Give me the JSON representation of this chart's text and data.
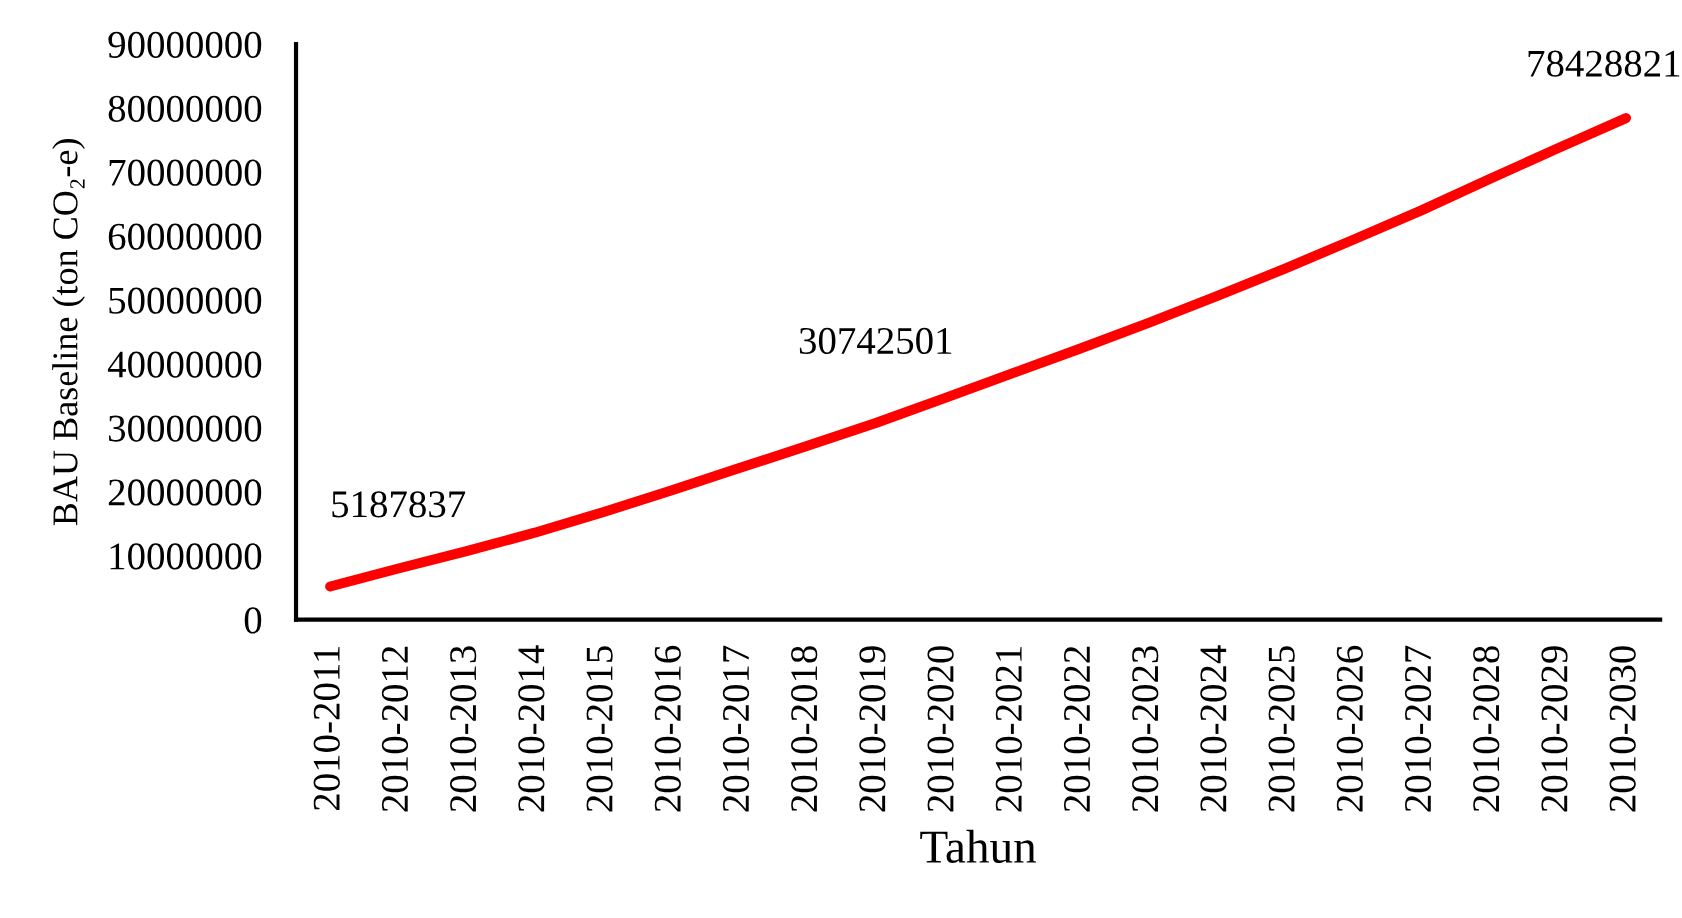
{
  "chart_data": {
    "type": "line",
    "xlabel": "Tahun",
    "ylabel": "BAU Baseline (ton CO₂-e)",
    "categories": [
      "2010-2011",
      "2010-2012",
      "2010-2013",
      "2010-2014",
      "2010-2015",
      "2010-2016",
      "2010-2017",
      "2010-2018",
      "2010-2019",
      "2010-2020",
      "2010-2021",
      "2010-2022",
      "2010-2023",
      "2010-2024",
      "2010-2025",
      "2010-2026",
      "2010-2027",
      "2010-2028",
      "2010-2029",
      "2010-2030"
    ],
    "series": [
      {
        "color": "#ff0000",
        "values": [
          5187837,
          8000000,
          10700000,
          13600000,
          16800000,
          20200000,
          23700000,
          27200000,
          30742501,
          34600000,
          38500000,
          42400000,
          46400000,
          50600000,
          54900000,
          59400000,
          64000000,
          68900000,
          73700000,
          78428821
        ],
        "value_labels": [
          "5187837",
          null,
          null,
          null,
          null,
          null,
          null,
          null,
          "30742501",
          null,
          null,
          null,
          null,
          null,
          null,
          null,
          null,
          null,
          null,
          "78428821"
        ]
      }
    ],
    "ylim": [
      0,
      90000000
    ],
    "yticks": [
      0,
      10000000,
      20000000,
      30000000,
      40000000,
      50000000,
      60000000,
      70000000,
      80000000,
      90000000
    ],
    "grid": false,
    "marker": "none",
    "line_style": "solid"
  }
}
